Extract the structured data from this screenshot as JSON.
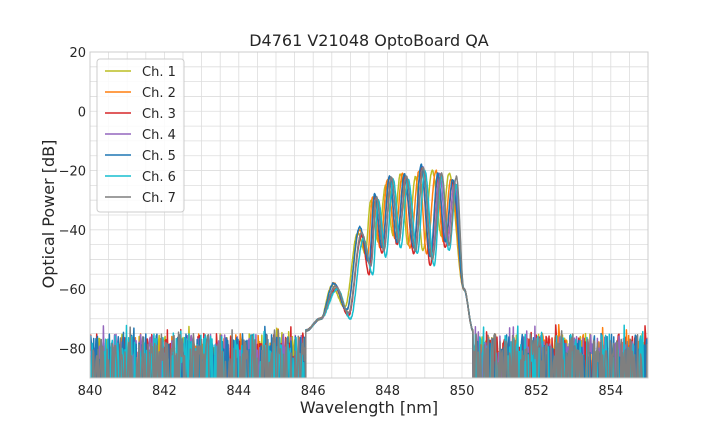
{
  "chart_data": {
    "type": "line",
    "title": "D4761 V21048 OptoBoard QA",
    "xlabel": "Wavelength [nm]",
    "ylabel": "Optical Power [dB]",
    "xlim": [
      840,
      855
    ],
    "ylim": [
      -90,
      20
    ],
    "x_ticks": [
      840,
      842,
      844,
      846,
      848,
      850,
      852,
      854
    ],
    "x_tick_labels": [
      "840",
      "842",
      "844",
      "846",
      "848",
      "850",
      "852",
      "854"
    ],
    "y_ticks": [
      20,
      0,
      -20,
      -40,
      -60,
      -80
    ],
    "y_tick_labels": [
      "20",
      "0",
      "−20",
      "−40",
      "−60",
      "−80"
    ],
    "grid": true,
    "legend_position": "top-left",
    "noise_floor": -90,
    "noise_top": -75,
    "signal_range": [
      845.8,
      850.3
    ],
    "series": [
      {
        "name": "Ch. 1",
        "color": "#bcbd22",
        "peaks": [
          {
            "x": 846.5,
            "y": -59
          },
          {
            "x": 847.2,
            "y": -41
          },
          {
            "x": 847.55,
            "y": -30
          },
          {
            "x": 847.95,
            "y": -25
          },
          {
            "x": 848.35,
            "y": -21
          },
          {
            "x": 848.75,
            "y": -22
          },
          {
            "x": 849.2,
            "y": -20
          },
          {
            "x": 849.65,
            "y": -21
          }
        ],
        "dips": [
          {
            "x": 846.85,
            "y": -66
          },
          {
            "x": 847.4,
            "y": -48
          },
          {
            "x": 847.75,
            "y": -44
          },
          {
            "x": 848.15,
            "y": -42
          },
          {
            "x": 848.55,
            "y": -45
          },
          {
            "x": 848.95,
            "y": -47
          },
          {
            "x": 849.45,
            "y": -42
          }
        ]
      },
      {
        "name": "Ch. 2",
        "color": "#ff7f0e",
        "peaks": [
          {
            "x": 846.55,
            "y": -58
          },
          {
            "x": 847.25,
            "y": -40
          },
          {
            "x": 847.6,
            "y": -29
          },
          {
            "x": 848.0,
            "y": -23
          },
          {
            "x": 848.4,
            "y": -21
          },
          {
            "x": 848.85,
            "y": -20
          },
          {
            "x": 849.3,
            "y": -20
          },
          {
            "x": 849.7,
            "y": -23
          }
        ],
        "dips": [
          {
            "x": 846.9,
            "y": -67
          },
          {
            "x": 847.45,
            "y": -50
          },
          {
            "x": 847.8,
            "y": -46
          },
          {
            "x": 848.2,
            "y": -43
          },
          {
            "x": 848.6,
            "y": -46
          },
          {
            "x": 849.05,
            "y": -48
          },
          {
            "x": 849.5,
            "y": -44
          }
        ]
      },
      {
        "name": "Ch. 3",
        "color": "#d62728",
        "peaks": [
          {
            "x": 846.6,
            "y": -60
          },
          {
            "x": 847.3,
            "y": -42
          },
          {
            "x": 847.65,
            "y": -29
          },
          {
            "x": 848.05,
            "y": -22
          },
          {
            "x": 848.45,
            "y": -22
          },
          {
            "x": 848.9,
            "y": -19
          },
          {
            "x": 849.35,
            "y": -22
          },
          {
            "x": 849.75,
            "y": -24
          }
        ],
        "dips": [
          {
            "x": 846.95,
            "y": -69
          },
          {
            "x": 847.5,
            "y": -55
          },
          {
            "x": 847.85,
            "y": -48
          },
          {
            "x": 848.25,
            "y": -45
          },
          {
            "x": 848.7,
            "y": -48
          },
          {
            "x": 849.15,
            "y": -52
          },
          {
            "x": 849.55,
            "y": -46
          }
        ]
      },
      {
        "name": "Ch. 4",
        "color": "#9467bd",
        "peaks": [
          {
            "x": 846.6,
            "y": -59
          },
          {
            "x": 847.3,
            "y": -41
          },
          {
            "x": 847.7,
            "y": -29
          },
          {
            "x": 848.1,
            "y": -23
          },
          {
            "x": 848.5,
            "y": -22
          },
          {
            "x": 848.95,
            "y": -19
          },
          {
            "x": 849.4,
            "y": -21
          },
          {
            "x": 849.8,
            "y": -24
          }
        ],
        "dips": [
          {
            "x": 846.95,
            "y": -68
          },
          {
            "x": 847.55,
            "y": -52
          },
          {
            "x": 847.9,
            "y": -47
          },
          {
            "x": 848.3,
            "y": -44
          },
          {
            "x": 848.75,
            "y": -47
          },
          {
            "x": 849.2,
            "y": -50
          },
          {
            "x": 849.6,
            "y": -45
          }
        ]
      },
      {
        "name": "Ch. 5",
        "color": "#1f77b4",
        "peaks": [
          {
            "x": 846.55,
            "y": -58
          },
          {
            "x": 847.25,
            "y": -39
          },
          {
            "x": 847.65,
            "y": -28
          },
          {
            "x": 848.05,
            "y": -22
          },
          {
            "x": 848.45,
            "y": -21
          },
          {
            "x": 848.9,
            "y": -18
          },
          {
            "x": 849.35,
            "y": -21
          },
          {
            "x": 849.75,
            "y": -23
          }
        ],
        "dips": [
          {
            "x": 846.9,
            "y": -67
          },
          {
            "x": 847.5,
            "y": -51
          },
          {
            "x": 847.85,
            "y": -46
          },
          {
            "x": 848.25,
            "y": -44
          },
          {
            "x": 848.7,
            "y": -46
          },
          {
            "x": 849.15,
            "y": -49
          },
          {
            "x": 849.55,
            "y": -44
          }
        ]
      },
      {
        "name": "Ch. 6",
        "color": "#17becf",
        "peaks": [
          {
            "x": 846.65,
            "y": -60
          },
          {
            "x": 847.35,
            "y": -43
          },
          {
            "x": 847.75,
            "y": -30
          },
          {
            "x": 848.15,
            "y": -23
          },
          {
            "x": 848.55,
            "y": -23
          },
          {
            "x": 849.0,
            "y": -20
          },
          {
            "x": 849.45,
            "y": -22
          },
          {
            "x": 849.85,
            "y": -25
          }
        ],
        "dips": [
          {
            "x": 847.0,
            "y": -70
          },
          {
            "x": 847.6,
            "y": -55
          },
          {
            "x": 847.95,
            "y": -49
          },
          {
            "x": 848.35,
            "y": -46
          },
          {
            "x": 848.8,
            "y": -48
          },
          {
            "x": 849.25,
            "y": -52
          },
          {
            "x": 849.65,
            "y": -47
          }
        ]
      },
      {
        "name": "Ch. 7",
        "color": "#7f7f7f",
        "peaks": [
          {
            "x": 846.6,
            "y": -59
          },
          {
            "x": 847.3,
            "y": -41
          },
          {
            "x": 847.7,
            "y": -29
          },
          {
            "x": 848.1,
            "y": -22
          },
          {
            "x": 848.5,
            "y": -22
          },
          {
            "x": 848.95,
            "y": -19
          },
          {
            "x": 849.45,
            "y": -21
          },
          {
            "x": 849.85,
            "y": -22
          }
        ],
        "dips": [
          {
            "x": 846.95,
            "y": -68
          },
          {
            "x": 847.55,
            "y": -52
          },
          {
            "x": 847.9,
            "y": -47
          },
          {
            "x": 848.3,
            "y": -44
          },
          {
            "x": 848.75,
            "y": -47
          },
          {
            "x": 849.2,
            "y": -50
          },
          {
            "x": 849.65,
            "y": -45
          }
        ]
      }
    ]
  }
}
